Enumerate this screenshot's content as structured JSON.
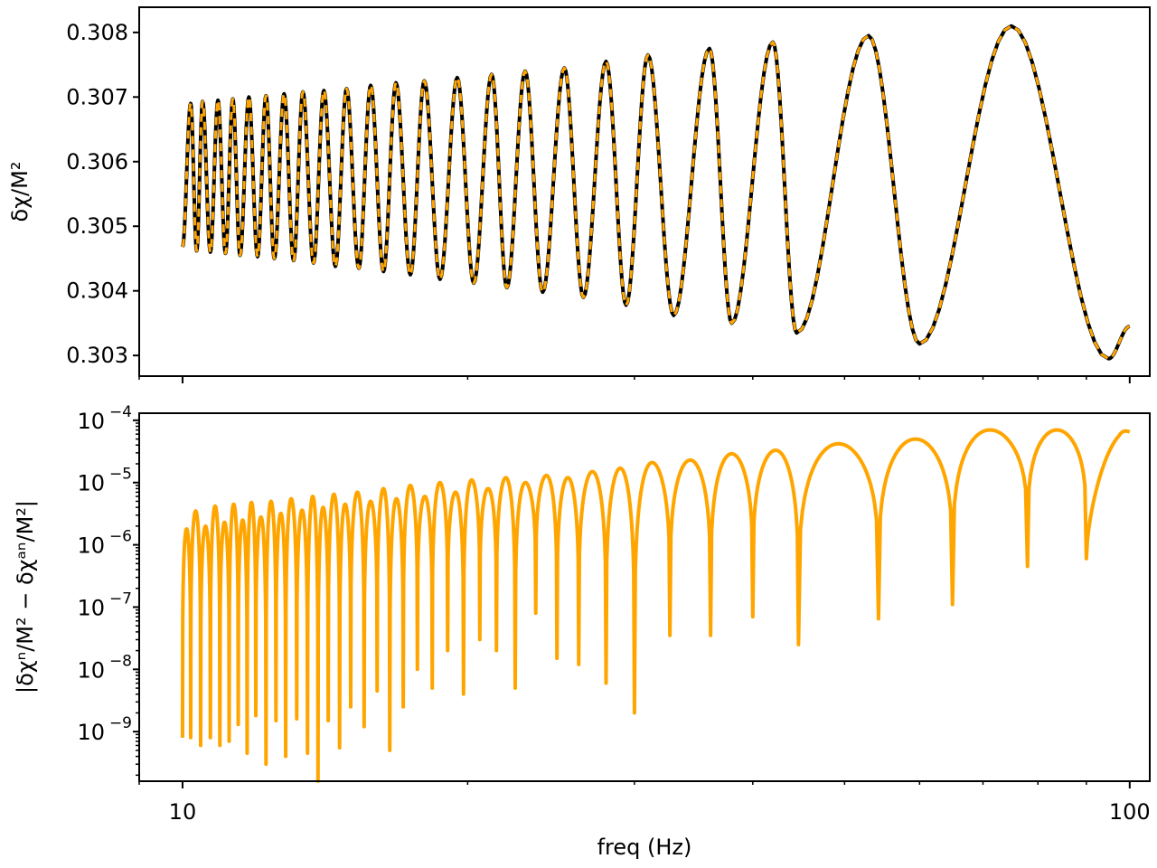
{
  "chart_data": [
    {
      "type": "line",
      "panel": "top",
      "ylabel": "δχ/M²",
      "xscale": "log",
      "yscale": "linear",
      "xlim": [
        9.0,
        105.0
      ],
      "ylim": [
        0.30268,
        0.30839
      ],
      "yticks": [
        0.303,
        0.304,
        0.305,
        0.306,
        0.307,
        0.308
      ],
      "ytick_labels": [
        "0.303",
        "0.304",
        "0.305",
        "0.306",
        "0.307",
        "0.308"
      ],
      "x_range": [
        10,
        100
      ],
      "start_value": 0.30468,
      "end_value": 0.30345,
      "peaks": [
        {
          "x": 10.2,
          "y": 0.3069
        },
        {
          "x": 10.5,
          "y": 0.30693
        },
        {
          "x": 10.9,
          "y": 0.30695
        },
        {
          "x": 11.3,
          "y": 0.30697
        },
        {
          "x": 11.75,
          "y": 0.307
        },
        {
          "x": 12.25,
          "y": 0.30702
        },
        {
          "x": 12.8,
          "y": 0.30705
        },
        {
          "x": 13.4,
          "y": 0.30708
        },
        {
          "x": 14.1,
          "y": 0.3071
        },
        {
          "x": 14.9,
          "y": 0.30713
        },
        {
          "x": 15.8,
          "y": 0.30718
        },
        {
          "x": 16.8,
          "y": 0.30722
        },
        {
          "x": 18.0,
          "y": 0.30725
        },
        {
          "x": 19.5,
          "y": 0.3073
        },
        {
          "x": 21.2,
          "y": 0.30735
        },
        {
          "x": 23.0,
          "y": 0.3074
        },
        {
          "x": 25.3,
          "y": 0.30745
        },
        {
          "x": 28.0,
          "y": 0.30755
        },
        {
          "x": 31.0,
          "y": 0.30765
        },
        {
          "x": 36.0,
          "y": 0.30775
        },
        {
          "x": 42.0,
          "y": 0.30785
        },
        {
          "x": 53.0,
          "y": 0.30795
        },
        {
          "x": 75.0,
          "y": 0.3081
        }
      ],
      "troughs": [
        {
          "x": 10.35,
          "y": 0.30462
        },
        {
          "x": 10.7,
          "y": 0.3046
        },
        {
          "x": 11.1,
          "y": 0.30458
        },
        {
          "x": 11.5,
          "y": 0.30455
        },
        {
          "x": 12.0,
          "y": 0.30453
        },
        {
          "x": 12.5,
          "y": 0.3045
        },
        {
          "x": 13.1,
          "y": 0.30447
        },
        {
          "x": 13.75,
          "y": 0.30443
        },
        {
          "x": 14.5,
          "y": 0.30438
        },
        {
          "x": 15.35,
          "y": 0.30435
        },
        {
          "x": 16.3,
          "y": 0.3043
        },
        {
          "x": 17.4,
          "y": 0.30425
        },
        {
          "x": 18.7,
          "y": 0.30418
        },
        {
          "x": 20.3,
          "y": 0.30412
        },
        {
          "x": 22.0,
          "y": 0.30405
        },
        {
          "x": 24.0,
          "y": 0.30398
        },
        {
          "x": 26.5,
          "y": 0.3039
        },
        {
          "x": 29.4,
          "y": 0.30378
        },
        {
          "x": 33.0,
          "y": 0.30362
        },
        {
          "x": 38.0,
          "y": 0.3035
        },
        {
          "x": 44.5,
          "y": 0.30335
        },
        {
          "x": 60.0,
          "y": 0.30318
        },
        {
          "x": 95.0,
          "y": 0.30295
        }
      ],
      "series": [
        {
          "color": "#000000",
          "style": "solid",
          "line_width": 4
        },
        {
          "color": "#FFA500",
          "style": "dashed",
          "line_width": 3
        }
      ]
    },
    {
      "type": "line",
      "panel": "bottom",
      "xlabel": "freq (Hz)",
      "ylabel": "|δχⁿ/M² − δχᵃⁿ/M²|",
      "xscale": "log",
      "yscale": "log",
      "xlim": [
        9.0,
        105.0
      ],
      "ylim": [
        1.6e-10,
        0.00013
      ],
      "x_range": [
        10,
        100
      ],
      "end_value": 6.5e-05,
      "xticks": [
        10,
        100
      ],
      "xtick_labels": [
        "10",
        "100"
      ],
      "yticks": [
        1e-09,
        1e-08,
        1e-07,
        1e-06,
        1e-05,
        0.0001
      ],
      "ytick_labels": [
        {
          "base": "10",
          "exp": "−9"
        },
        {
          "base": "10",
          "exp": "−8"
        },
        {
          "base": "10",
          "exp": "−7"
        },
        {
          "base": "10",
          "exp": "−6"
        },
        {
          "base": "10",
          "exp": "−5"
        },
        {
          "base": "10",
          "exp": "−4"
        }
      ],
      "peaks": [
        {
          "x": 10.1,
          "y": 1.8e-06
        },
        {
          "x": 10.35,
          "y": 3.5e-06
        },
        {
          "x": 10.6,
          "y": 2e-06
        },
        {
          "x": 10.8,
          "y": 4.2e-06
        },
        {
          "x": 11.05,
          "y": 2.3e-06
        },
        {
          "x": 11.3,
          "y": 4.5e-06
        },
        {
          "x": 11.55,
          "y": 2.5e-06
        },
        {
          "x": 11.8,
          "y": 4.8e-06
        },
        {
          "x": 12.1,
          "y": 2.8e-06
        },
        {
          "x": 12.4,
          "y": 5e-06
        },
        {
          "x": 12.7,
          "y": 3.2e-06
        },
        {
          "x": 13.0,
          "y": 5.5e-06
        },
        {
          "x": 13.35,
          "y": 3.6e-06
        },
        {
          "x": 13.7,
          "y": 6e-06
        },
        {
          "x": 14.05,
          "y": 4e-06
        },
        {
          "x": 14.45,
          "y": 6.5e-06
        },
        {
          "x": 14.85,
          "y": 4.5e-06
        },
        {
          "x": 15.3,
          "y": 7e-06
        },
        {
          "x": 15.8,
          "y": 5e-06
        },
        {
          "x": 16.3,
          "y": 8e-06
        },
        {
          "x": 16.8,
          "y": 5.5e-06
        },
        {
          "x": 17.4,
          "y": 9e-06
        },
        {
          "x": 18.0,
          "y": 6e-06
        },
        {
          "x": 18.7,
          "y": 1e-05
        },
        {
          "x": 19.4,
          "y": 7e-06
        },
        {
          "x": 20.2,
          "y": 1.1e-05
        },
        {
          "x": 21.0,
          "y": 8e-06
        },
        {
          "x": 21.9,
          "y": 1.2e-05
        },
        {
          "x": 23.0,
          "y": 1e-05
        },
        {
          "x": 24.2,
          "y": 1.3e-05
        },
        {
          "x": 25.5,
          "y": 1.2e-05
        },
        {
          "x": 27.0,
          "y": 1.5e-05
        },
        {
          "x": 29.0,
          "y": 1.7e-05
        },
        {
          "x": 31.4,
          "y": 2.1e-05
        },
        {
          "x": 34.4,
          "y": 2.3e-05
        },
        {
          "x": 38.0,
          "y": 2.9e-05
        },
        {
          "x": 42.5,
          "y": 3.3e-05
        },
        {
          "x": 50.0,
          "y": 4.2e-05
        },
        {
          "x": 60.0,
          "y": 5e-05
        },
        {
          "x": 75.0,
          "y": 7e-05
        }
      ],
      "dips": [
        {
          "x": 10.0,
          "y": 8e-10
        },
        {
          "x": 10.2,
          "y": 8e-10
        },
        {
          "x": 10.45,
          "y": 6e-10
        },
        {
          "x": 10.7,
          "y": 8e-10
        },
        {
          "x": 10.95,
          "y": 6e-10
        },
        {
          "x": 11.2,
          "y": 7e-10
        },
        {
          "x": 11.45,
          "y": 1.3e-09
        },
        {
          "x": 11.7,
          "y": 4.5e-10
        },
        {
          "x": 11.95,
          "y": 1.8e-09
        },
        {
          "x": 12.25,
          "y": 3e-10
        },
        {
          "x": 12.55,
          "y": 1.5e-09
        },
        {
          "x": 12.85,
          "y": 4e-10
        },
        {
          "x": 13.2,
          "y": 1.6e-09
        },
        {
          "x": 13.55,
          "y": 4.5e-10
        },
        {
          "x": 13.9,
          "y": 1.6e-10
        },
        {
          "x": 14.25,
          "y": 1.5e-09
        },
        {
          "x": 14.65,
          "y": 5.5e-10
        },
        {
          "x": 15.05,
          "y": 2.5e-09
        },
        {
          "x": 15.55,
          "y": 1.2e-09
        },
        {
          "x": 16.05,
          "y": 4.5e-09
        },
        {
          "x": 16.55,
          "y": 5e-10
        },
        {
          "x": 17.1,
          "y": 2.5e-09
        },
        {
          "x": 17.7,
          "y": 1e-08
        },
        {
          "x": 18.35,
          "y": 5e-09
        },
        {
          "x": 19.05,
          "y": 2e-08
        },
        {
          "x": 19.8,
          "y": 4e-09
        },
        {
          "x": 20.6,
          "y": 3e-08
        },
        {
          "x": 21.45,
          "y": 2e-08
        },
        {
          "x": 22.45,
          "y": 5e-09
        },
        {
          "x": 23.6,
          "y": 8e-08
        },
        {
          "x": 24.85,
          "y": 1.5e-08
        },
        {
          "x": 26.2,
          "y": 1.2e-08
        },
        {
          "x": 28.0,
          "y": 6e-09
        },
        {
          "x": 30.0,
          "y": 2e-09
        },
        {
          "x": 32.7,
          "y": 3.5e-08
        },
        {
          "x": 36.1,
          "y": 3.5e-08
        },
        {
          "x": 40.0,
          "y": 7e-08
        },
        {
          "x": 44.7,
          "y": 2.5e-08
        },
        {
          "x": 54.3,
          "y": 6.5e-08
        },
        {
          "x": 65.0,
          "y": 1.1e-07
        },
        {
          "x": 78.0,
          "y": 4.5e-07
        },
        {
          "x": 90.0,
          "y": 6e-07
        }
      ],
      "series": [
        {
          "color": "#FFA500",
          "style": "solid",
          "line_width": 4
        }
      ]
    }
  ]
}
